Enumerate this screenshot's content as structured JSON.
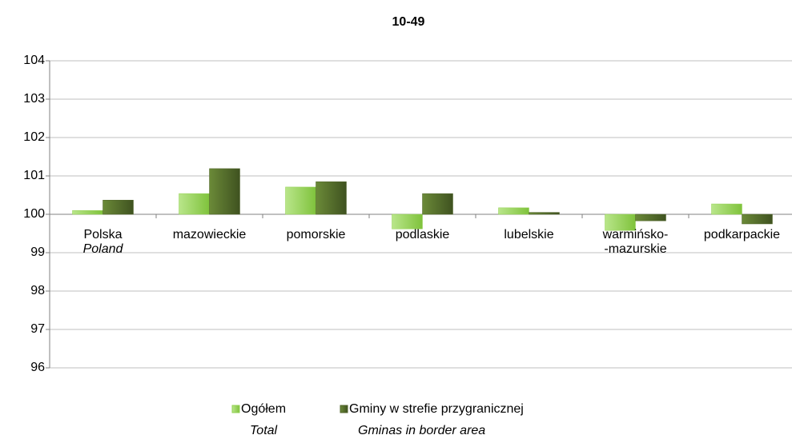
{
  "chart_data": {
    "type": "bar",
    "title": "10-49",
    "categories": [
      [
        "Polska",
        "Poland"
      ],
      [
        "mazowieckie"
      ],
      [
        "pomorskie"
      ],
      [
        "podlaskie"
      ],
      [
        "lubelskie"
      ],
      [
        "warmińsko-",
        "-mazurskie"
      ],
      [
        "podkarpackie"
      ]
    ],
    "series": [
      {
        "name": "Ogółem",
        "name_en": "Total",
        "color": "#92d050",
        "values": [
          100.1,
          100.54,
          100.71,
          99.62,
          100.17,
          99.58,
          100.27
        ]
      },
      {
        "name": "Gminy w strefie przygranicznej",
        "name_en": "Gminas in border area",
        "color": "#4f6228",
        "values": [
          100.37,
          101.19,
          100.85,
          100.54,
          100.05,
          99.83,
          99.75
        ]
      }
    ],
    "ylim": [
      96,
      104
    ],
    "yticks": [
      96,
      97,
      98,
      99,
      100,
      101,
      102,
      103,
      104
    ],
    "x_axis_crosses": 100,
    "grid": true,
    "legend": "bottom"
  }
}
